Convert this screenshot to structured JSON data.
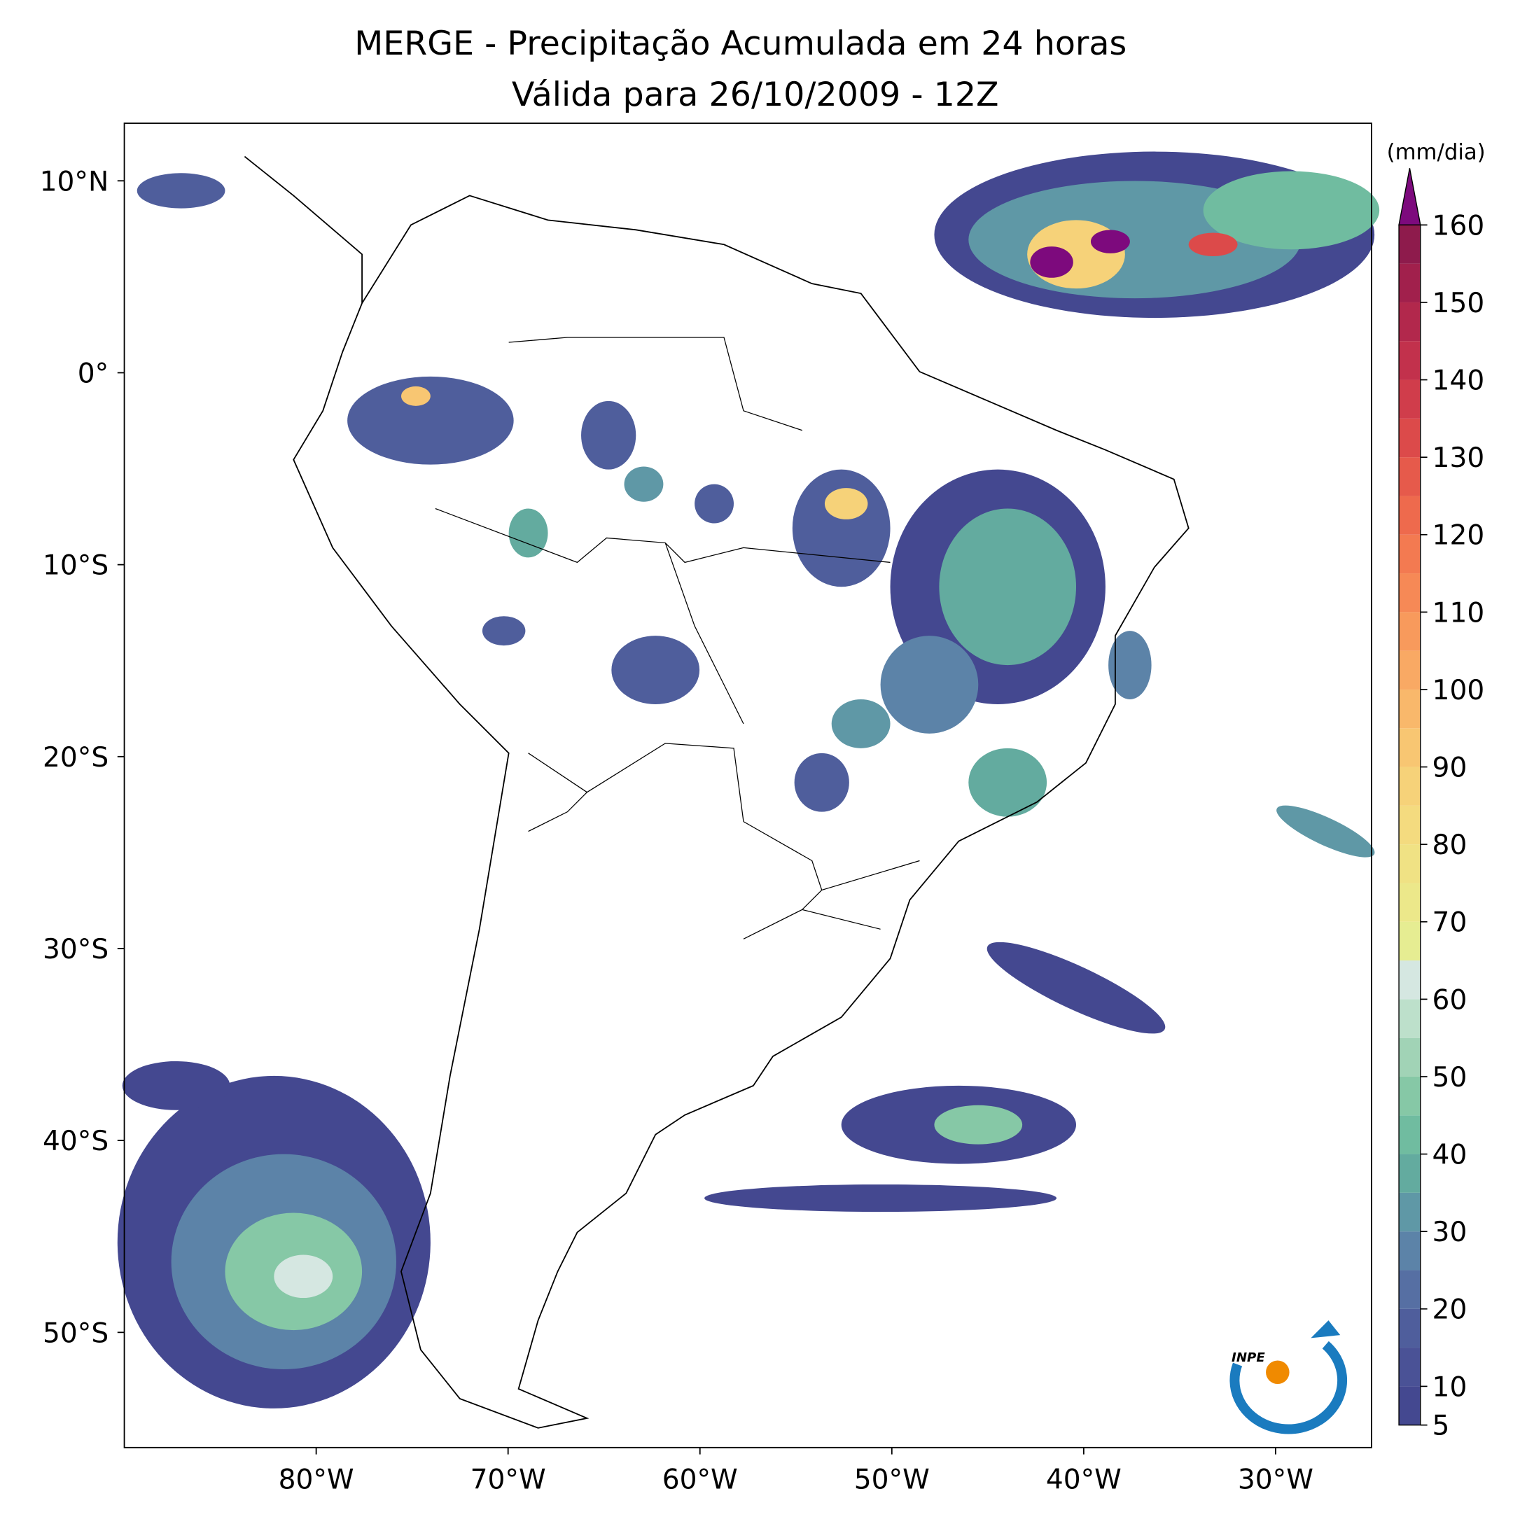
{
  "map": {
    "title": "MERGE - Precipitação Acumulada em 24 horas",
    "subtitle": "Válida para 26/10/2009 - 12Z",
    "lonlim": [
      -90,
      -25
    ],
    "latlim": [
      -56,
      13
    ],
    "lon_ticks": [
      {
        "value": -80,
        "label": "80°W"
      },
      {
        "value": -70,
        "label": "70°W"
      },
      {
        "value": -60,
        "label": "60°W"
      },
      {
        "value": -50,
        "label": "50°W"
      },
      {
        "value": -40,
        "label": "40°W"
      },
      {
        "value": -30,
        "label": "30°W"
      }
    ],
    "lat_ticks": [
      {
        "value": 10,
        "label": "10°N"
      },
      {
        "value": 0,
        "label": "0°"
      },
      {
        "value": -10,
        "label": "10°S"
      },
      {
        "value": -20,
        "label": "20°S"
      },
      {
        "value": -30,
        "label": "30°S"
      },
      {
        "value": -40,
        "label": "40°S"
      },
      {
        "value": -50,
        "label": "50°S"
      }
    ],
    "colorbar": {
      "label": "(mm/dia)",
      "lim": [
        5,
        160
      ],
      "ticks": [
        5,
        10,
        20,
        30,
        40,
        50,
        60,
        70,
        80,
        90,
        100,
        110,
        120,
        130,
        140,
        150,
        160
      ],
      "levels": [
        5,
        10,
        15,
        20,
        25,
        30,
        35,
        40,
        45,
        50,
        55,
        60,
        65,
        70,
        75,
        80,
        85,
        90,
        95,
        100,
        105,
        110,
        115,
        120,
        125,
        130,
        135,
        140,
        145,
        150,
        155,
        160
      ],
      "colors": [
        "#444890",
        "#4a5296",
        "#4f5e9c",
        "#566fa3",
        "#5c83a8",
        "#5f98a6",
        "#63ab9f",
        "#70bca0",
        "#86c8a6",
        "#a1d3b6",
        "#bde0cb",
        "#d5e7e1",
        "#e6ed92",
        "#ece88a",
        "#f0e284",
        "#f4db7f",
        "#f6d279",
        "#f8c672",
        "#f9b86b",
        "#f9a964",
        "#f89a5c",
        "#f68956",
        "#f37a51",
        "#ee6a4d",
        "#e65a4b",
        "#dc4a4a",
        "#d03d4b",
        "#c2314c",
        "#b2284c",
        "#a1204c",
        "#8e1b4c"
      ],
      "extend_color": "#7d0a7d"
    },
    "logo_text": "INPE"
  }
}
